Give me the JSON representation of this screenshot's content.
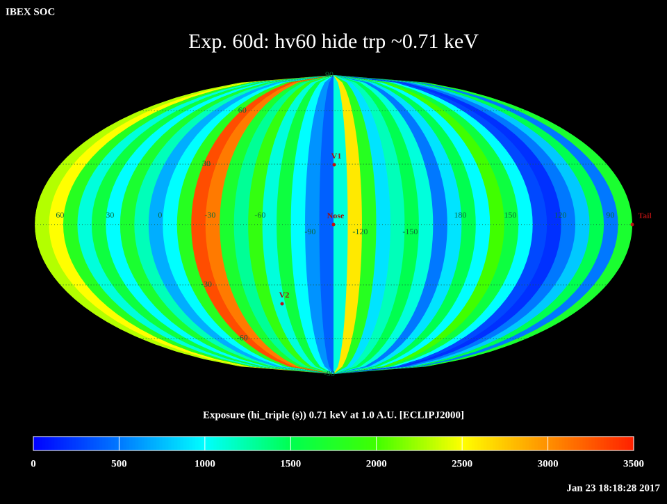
{
  "chart_data": {
    "type": "skymap",
    "header": "IBEX SOC",
    "title": "Exp.   60d: hv60 hide trp ~0.71 keV",
    "colorbar_title": "Exposure (hi_triple (s))  0.71 keV at 1.0 A.U. [ECLIPJ2000]",
    "timestamp": "Jan 23 18:18:28 2017",
    "lat_ticks": [
      90,
      60,
      30,
      -30,
      -60,
      -90
    ],
    "lon_ticks": [
      60,
      30,
      0,
      -30,
      -60,
      -90,
      -120,
      -150,
      180,
      150,
      120,
      90
    ],
    "markers": [
      "V1",
      "Nose",
      "V2",
      "Tail"
    ],
    "stripes": [
      2300,
      2500,
      1800,
      1100,
      1600,
      1000,
      1700,
      1200,
      700,
      1000,
      1800,
      3300,
      3100,
      1700,
      1300,
      1900,
      1100,
      1600,
      1000,
      600,
      400,
      1100,
      2600,
      1800,
      900,
      1200,
      1500,
      1100,
      500,
      900,
      1500,
      1000,
      2000,
      1600,
      1000,
      300,
      200,
      500,
      800,
      1500,
      500,
      1700
    ],
    "clim": [
      0,
      3500
    ],
    "cticks": [
      0,
      500,
      1000,
      1500,
      2000,
      2500,
      3000,
      3500
    ],
    "colormap": [
      "#0000ff",
      "#0078ff",
      "#00ffff",
      "#00ff50",
      "#40ff00",
      "#ffff00",
      "#ff9000",
      "#ff2000"
    ]
  }
}
